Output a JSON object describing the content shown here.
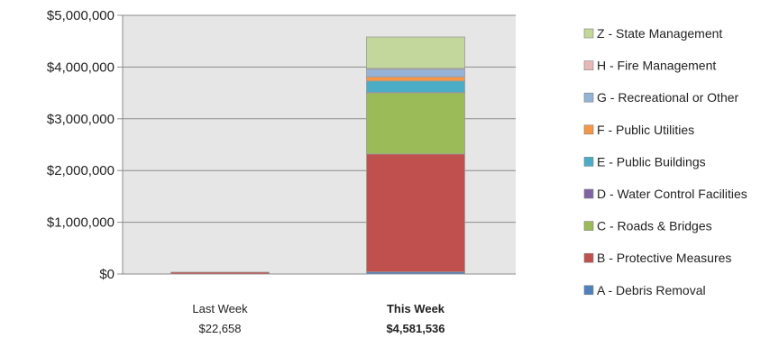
{
  "chart_data": {
    "type": "bar",
    "stacked": true,
    "categories": [
      "Last Week",
      "This Week"
    ],
    "category_totals": [
      "$22,658",
      "$4,581,536"
    ],
    "ylim": [
      0,
      5000000
    ],
    "yticks": [
      0,
      1000000,
      2000000,
      3000000,
      4000000,
      5000000
    ],
    "ytick_labels": [
      "$0",
      "$1,000,000",
      "$2,000,000",
      "$3,000,000",
      "$4,000,000",
      "$5,000,000"
    ],
    "grid": true,
    "legend_position": "right",
    "series": [
      {
        "name": "A - Debris Removal",
        "color": "#4f81bd",
        "values": [
          0,
          40000
        ]
      },
      {
        "name": "B - Protective Measures",
        "color": "#c0504d",
        "values": [
          22658,
          2280000
        ]
      },
      {
        "name": "C - Roads & Bridges",
        "color": "#9bbb59",
        "values": [
          0,
          1180000
        ]
      },
      {
        "name": "D - Water Control Facilities",
        "color": "#8064a2",
        "values": [
          0,
          10000
        ]
      },
      {
        "name": "E - Public Buildings",
        "color": "#4bacc6",
        "values": [
          0,
          220000
        ]
      },
      {
        "name": "F - Public Utilities",
        "color": "#f79646",
        "values": [
          0,
          80000
        ]
      },
      {
        "name": "G - Recreational or Other",
        "color": "#95b3d7",
        "values": [
          0,
          150000
        ]
      },
      {
        "name": "H - Fire Management",
        "color": "#e6b9b8",
        "values": [
          0,
          15000
        ]
      },
      {
        "name": "Z - State Management",
        "color": "#c3d69b",
        "values": [
          0,
          606536
        ]
      }
    ]
  }
}
